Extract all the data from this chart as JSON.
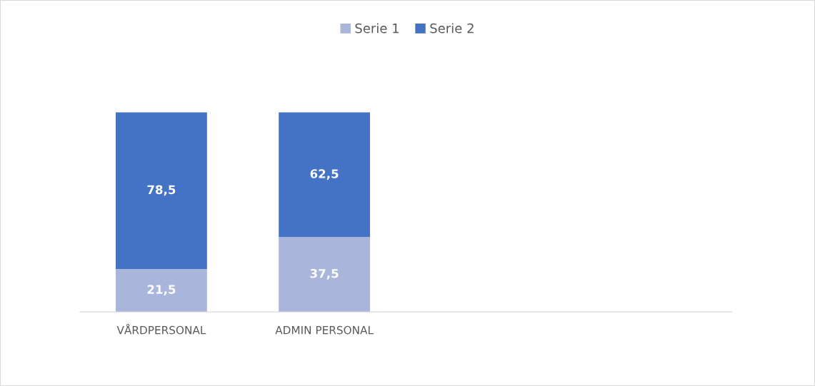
{
  "chart_data": {
    "type": "bar",
    "stacked": true,
    "legend": "top",
    "categories": [
      "VÅRDPERSONAL",
      "ADMIN PERSONAL",
      null,
      null
    ],
    "series": [
      {
        "name": "Serie 1",
        "color": "#a9b5da",
        "values": [
          21.5,
          37.5,
          null,
          null
        ],
        "value_labels": [
          "21,5",
          "37,5",
          null,
          null
        ]
      },
      {
        "name": "Serie 2",
        "color": "#4472c4",
        "values": [
          78.5,
          62.5,
          null,
          null
        ],
        "value_labels": [
          "78,5",
          "62,5",
          null,
          null
        ]
      }
    ]
  }
}
